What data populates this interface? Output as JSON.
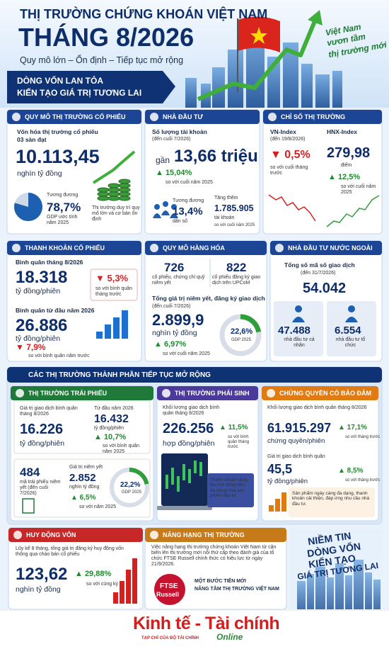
{
  "header": {
    "title": "THỊ TRƯỜNG CHỨNG KHOÁN VIỆT NAM",
    "month": "THÁNG 8/2026",
    "subtitle": "Quy mô lớn – Ổn định – Tiếp tục mở rộng",
    "banner": [
      "DÒNG VỐN LAN TỎA",
      "KIẾN TẠO GIÁ TRỊ TƯƠNG LAI"
    ],
    "slogan": [
      "Việt Nam",
      "vươn tầm",
      "thị trường mới"
    ]
  },
  "market_cap": {
    "heading": "QUY MÔ THỊ TRƯỜNG CỔ PHIẾU",
    "items": [
      "Vốn hóa thị trường cổ phiếu",
      "03 sàn đạt",
      "10.113,45",
      "nghìn tỷ đồng",
      "Tương đương",
      "78,7%",
      "GDP ước tính năm 2025",
      "Thị trường duy trì quy mô lớn và cơ bản ổn định"
    ]
  },
  "investors": {
    "heading": "NHÀ ĐẦU TƯ",
    "items": [
      "Số lượng tài khoản",
      "(đến cuối 7/2026)",
      "gần",
      "13,66 triệu",
      "▲ 15,04%",
      "so với cuối năm 2025",
      "Tương đương",
      "13,4%",
      "dân số",
      "Tăng thêm",
      "1.785.905",
      "tài khoản",
      "so với cuối năm 2025"
    ]
  },
  "indices": {
    "heading": "CHỈ SỐ THỊ TRƯỜNG",
    "items": [
      "VN-Index",
      "(đến 19/8/2026)",
      "▼ 0,5%",
      "so với cuối tháng trước",
      "HNX-Index",
      "279,98",
      "điểm",
      "▲ 12,5%",
      "so với cuối năm 2025"
    ]
  },
  "liquidity": {
    "heading": "THANH KHOẢN CỔ PHIẾU",
    "items": [
      "Bình quân tháng 8/2026",
      "18.318",
      "tỷ đồng/phiên",
      "▼ 5,3%",
      "so với bình quân tháng trước",
      "Bình quân từ đầu năm 2026",
      "26.886",
      "tỷ đồng/phiên",
      "▼ 7,9%",
      "so với bình quân năm trước"
    ]
  },
  "goods": {
    "heading": "QUY MÔ HÀNG HÓA",
    "items": [
      "726",
      "cổ phiếu, chứng chỉ quỹ niêm yết",
      "822",
      "cổ phiếu đăng ký giao dịch trên UPCoM",
      "Tổng giá trị niêm yết, đăng ký giao dịch",
      "(đến cuối 7/2026)",
      "2.899,9",
      "nghìn tỷ đồng",
      "▲ 6,97%",
      "so với cuối năm 2025",
      "22,6%",
      "GDP 2025"
    ]
  },
  "foreign": {
    "heading": "NHÀ ĐẦU TƯ NƯỚC NGOÀI",
    "items": [
      "Tổng số mã số giao dịch",
      "(đến 31/7/2026)",
      "54.042",
      "47.488",
      "nhà đầu tư cá nhân",
      "6.554",
      "nhà đầu tư tổ chức"
    ]
  },
  "section_title": "CÁC THỊ TRƯỜNG THÀNH PHẦN TIẾP TỤC MỞ RỘNG",
  "bonds": {
    "heading": "THỊ TRƯỜNG TRÁI PHIẾU",
    "items": [
      "Giá trị giao dịch bình quân tháng 8/2026",
      "16.226",
      "tỷ đồng/phiên",
      "Từ đầu năm 2026",
      "16.432",
      "tỷ đồng/phiên",
      "▲ 10,7%",
      "so với bình quân năm 2025",
      "484",
      "mã trái phiếu niêm yết (đến cuối 7/2026)",
      "Giá trị niêm yết",
      "2.852",
      "nghìn tỷ đồng",
      "▲ 6,5%",
      "so với năm 2025",
      "22,2%",
      "GDP 2025"
    ]
  },
  "derivatives": {
    "heading": "THỊ TRƯỜNG PHÁI SINH",
    "items": [
      "Khối lượng giao dịch bình quân tháng 8/2026",
      "226.256",
      "hợp đồng/phiên",
      "▲ 11,5%",
      "so với bình quân tháng trước",
      "Thanh khoản tăng, thu hút dòng tiền, đa dạng hóa sản phẩm đầu tư"
    ]
  },
  "warrants": {
    "heading": "CHỨNG QUYỀN CÓ BẢO ĐẢM",
    "items": [
      "Khối lượng giao dịch bình quân tháng 8/2026",
      "61.915.297",
      "chứng quyền/phiên",
      "▲ 17,1%",
      "so với tháng trước",
      "Giá trị giao dịch bình quân",
      "45,5",
      "tỷ đồng/phiên",
      "▲ 8,5%",
      "so với tháng trước",
      "Sản phẩm ngày càng đa dạng, thanh khoản cải thiện, đáp ứng nhu cầu nhà đầu tư."
    ]
  },
  "capital": {
    "heading": "HUY ĐỘNG VỐN",
    "items": [
      "Lũy kế 8 tháng, tổng giá trị đăng ký huy động vốn thông qua chào bán cổ phiếu",
      "123,62",
      "nghìn tỷ đồng",
      "▲ 29,88%",
      "so với cùng kỳ"
    ]
  },
  "upgrade": {
    "heading": "NÂNG HẠNG THỊ TRƯỜNG",
    "items": [
      "Việc nâng hạng thị trường chứng khoán Việt Nam từ cận biên lên thị trường mới nổi thứ cấp theo đánh giá của tổ chức FTSE Russell chính thức có hiệu lực từ ngày 21/9/2026.",
      "FTSE",
      "Russell",
      "MỘT BƯỚC TIẾN MỚI",
      "NÂNG TẦM THỊ TRƯỜNG VIỆT NAM"
    ]
  },
  "motto": [
    "NIỀM TIN",
    "DÒNG VỐN",
    "KIẾN TẠO",
    "GIÁ TRỊ TƯƠNG LAI"
  ],
  "footer": {
    "brand": "Kinh tế - Tài chính",
    "online": "Online",
    "tagline": "TẠP CHÍ CỦA BỘ TÀI CHÍNH"
  }
}
